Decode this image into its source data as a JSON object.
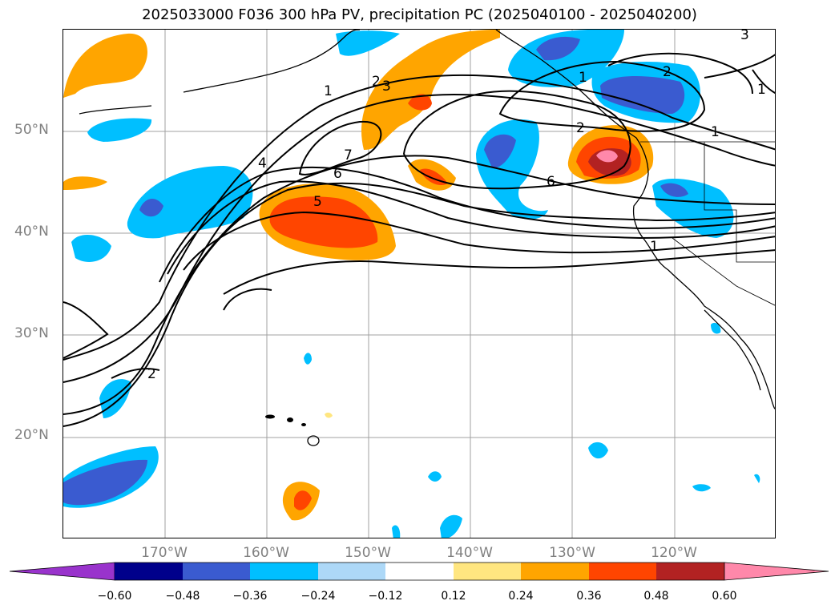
{
  "title": "2025033000 F036 300 hPa PV, precipitation PC (2025040100 - 2025040200)",
  "map": {
    "projection": "lat-lon",
    "lon_range": [
      -180,
      -110
    ],
    "lat_range": [
      10,
      60
    ],
    "lat_labels": [
      "50°N",
      "40°N",
      "30°N",
      "20°N"
    ],
    "lon_labels": [
      "170°W",
      "160°W",
      "150°W",
      "140°W",
      "130°W",
      "120°W"
    ],
    "contour_labels": [
      "1",
      "2",
      "3",
      "4",
      "5",
      "6",
      "7",
      "1",
      "2",
      "3",
      "2",
      "1",
      "6",
      "2",
      "1",
      "1"
    ],
    "colors": {
      "contour": "#000000",
      "gridline": "#a0a0a0",
      "axis_label": "#808080"
    }
  },
  "colorbar": {
    "ticks": [
      "−0.60",
      "−0.48",
      "−0.36",
      "−0.24",
      "−0.12",
      "0.12",
      "0.24",
      "0.36",
      "0.48",
      "0.60"
    ],
    "colors": [
      "#9933cc",
      "#00008b",
      "#3a5bd0",
      "#00bfff",
      "#add8f7",
      "#ffffff",
      "#ffe680",
      "#ffa500",
      "#ff4500",
      "#b22222",
      "#ff88aa"
    ]
  }
}
